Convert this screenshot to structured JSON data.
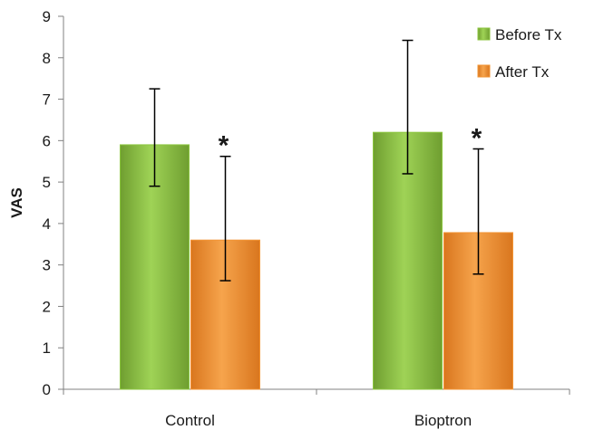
{
  "chart_data": {
    "type": "bar",
    "title": "",
    "xlabel": "",
    "ylabel": "VAS",
    "ylim": [
      0,
      9
    ],
    "yticks": [
      0,
      1,
      2,
      3,
      4,
      5,
      6,
      7,
      8,
      9
    ],
    "grid": false,
    "legend_position": "top-right",
    "categories": [
      "Control",
      "Bioptron"
    ],
    "series": [
      {
        "name": "Before Tx",
        "color": "#8cc63f",
        "values": [
          5.9,
          6.2
        ],
        "error_low": [
          4.9,
          5.2
        ],
        "error_high": [
          7.25,
          8.42
        ]
      },
      {
        "name": "After Tx",
        "color": "#f29434",
        "values": [
          3.6,
          3.78
        ],
        "error_low": [
          2.62,
          2.78
        ],
        "error_high": [
          5.62,
          5.8
        ]
      }
    ],
    "annotations": [
      {
        "series": 1,
        "category": 0,
        "text": "*"
      },
      {
        "series": 1,
        "category": 1,
        "text": "*"
      }
    ]
  }
}
